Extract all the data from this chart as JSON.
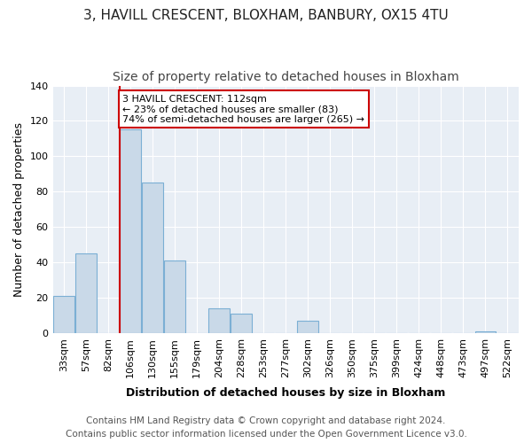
{
  "title": "3, HAVILL CRESCENT, BLOXHAM, BANBURY, OX15 4TU",
  "subtitle": "Size of property relative to detached houses in Bloxham",
  "xlabel": "Distribution of detached houses by size in Bloxham",
  "ylabel": "Number of detached properties",
  "footer_line1": "Contains HM Land Registry data © Crown copyright and database right 2024.",
  "footer_line2": "Contains public sector information licensed under the Open Government Licence v3.0.",
  "categories": [
    "33sqm",
    "57sqm",
    "82sqm",
    "106sqm",
    "130sqm",
    "155sqm",
    "179sqm",
    "204sqm",
    "228sqm",
    "253sqm",
    "277sqm",
    "302sqm",
    "326sqm",
    "350sqm",
    "375sqm",
    "399sqm",
    "424sqm",
    "448sqm",
    "473sqm",
    "497sqm",
    "522sqm"
  ],
  "values": [
    21,
    45,
    0,
    115,
    85,
    41,
    0,
    14,
    11,
    0,
    0,
    7,
    0,
    0,
    0,
    0,
    0,
    0,
    0,
    1,
    0
  ],
  "bar_color": "#c9d9e8",
  "bar_edge_color": "#7bafd4",
  "vline_index": 3,
  "vline_color": "#cc0000",
  "annotation_text": "3 HAVILL CRESCENT: 112sqm\n← 23% of detached houses are smaller (83)\n74% of semi-detached houses are larger (265) →",
  "annotation_box_color": "#ffffff",
  "annotation_box_edge": "#cc0000",
  "ylim": [
    0,
    140
  ],
  "yticks": [
    0,
    20,
    40,
    60,
    80,
    100,
    120,
    140
  ],
  "plot_background": "#e8eef5",
  "title_fontsize": 11,
  "subtitle_fontsize": 10,
  "xlabel_fontsize": 9,
  "ylabel_fontsize": 9,
  "tick_fontsize": 8,
  "footer_fontsize": 7.5
}
